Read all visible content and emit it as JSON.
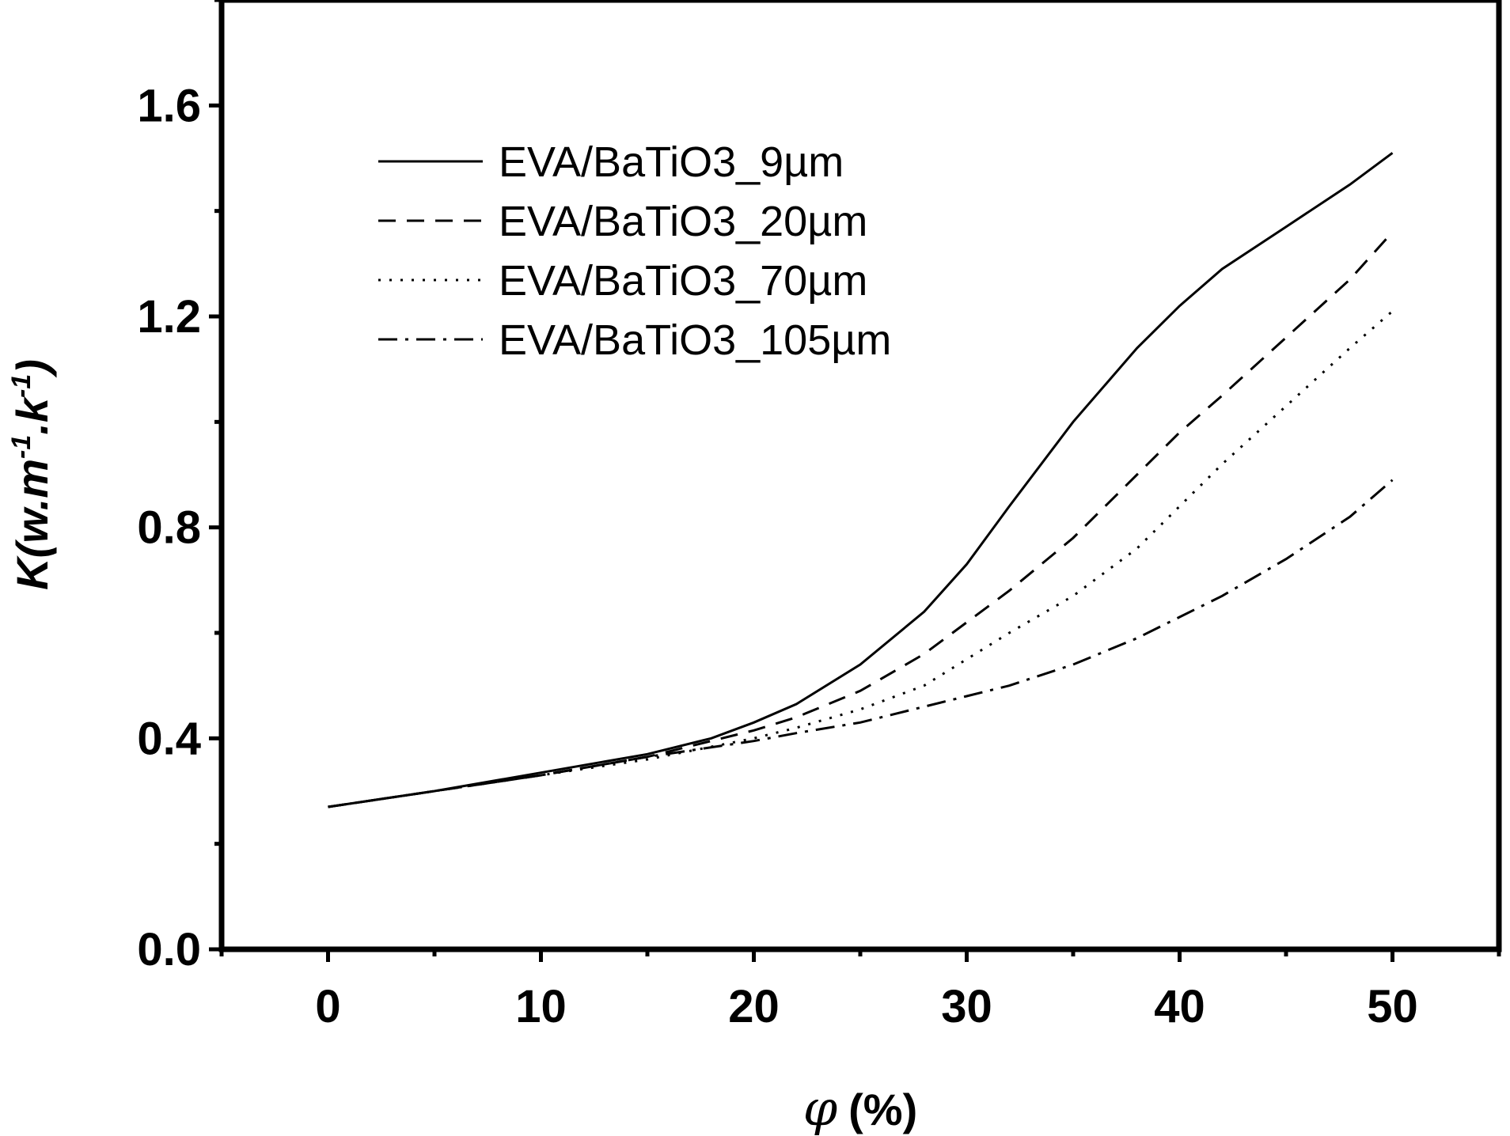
{
  "chart_data": {
    "type": "line",
    "xlabel_symbol": "φ",
    "xlabel_unit": "(%)",
    "ylabel": "K(w.m",
    "ylabel_sup1": "-1",
    "ylabel_mid": ".k",
    "ylabel_sup2": "-1",
    "ylabel_close": ")",
    "xlim": [
      -5,
      55
    ],
    "ylim": [
      0.0,
      1.8
    ],
    "x_ticks": [
      0,
      10,
      20,
      30,
      40,
      50
    ],
    "x_tick_labels": [
      "0",
      "10",
      "20",
      "30",
      "40",
      "50"
    ],
    "y_ticks": [
      0.0,
      0.4,
      0.8,
      1.2,
      1.6
    ],
    "y_tick_labels": [
      "0.0",
      "0.4",
      "0.8",
      "1.2",
      "1.6"
    ],
    "legend_position": "top-left",
    "series": [
      {
        "name": "EVA/BaTiO3_9µm",
        "style": "solid",
        "x": [
          0,
          5,
          10,
          15,
          18,
          20,
          22,
          25,
          28,
          30,
          32,
          35,
          38,
          40,
          42,
          45,
          48,
          50
        ],
        "y": [
          0.27,
          0.3,
          0.335,
          0.37,
          0.4,
          0.43,
          0.465,
          0.54,
          0.64,
          0.73,
          0.84,
          1.0,
          1.14,
          1.22,
          1.29,
          1.37,
          1.45,
          1.51
        ]
      },
      {
        "name": "EVA/BaTiO3_20µm",
        "style": "dashed",
        "x": [
          0,
          5,
          10,
          15,
          20,
          22,
          25,
          28,
          30,
          32,
          35,
          38,
          40,
          42,
          45,
          48,
          50
        ],
        "y": [
          0.27,
          0.3,
          0.33,
          0.365,
          0.415,
          0.44,
          0.49,
          0.56,
          0.62,
          0.68,
          0.78,
          0.9,
          0.98,
          1.05,
          1.16,
          1.27,
          1.36
        ]
      },
      {
        "name": "EVA/BaTiO3_70µm",
        "style": "dotted",
        "x": [
          0,
          5,
          10,
          15,
          20,
          22,
          25,
          28,
          30,
          32,
          35,
          38,
          40,
          42,
          45,
          48,
          50
        ],
        "y": [
          0.27,
          0.3,
          0.33,
          0.36,
          0.4,
          0.42,
          0.455,
          0.5,
          0.55,
          0.6,
          0.67,
          0.76,
          0.84,
          0.92,
          1.03,
          1.14,
          1.21
        ]
      },
      {
        "name": "EVA/BaTiO3_105µm",
        "style": "dash-dot",
        "x": [
          0,
          5,
          10,
          15,
          20,
          22,
          25,
          28,
          30,
          32,
          35,
          38,
          40,
          42,
          45,
          48,
          50
        ],
        "y": [
          0.27,
          0.3,
          0.33,
          0.365,
          0.395,
          0.41,
          0.43,
          0.46,
          0.48,
          0.5,
          0.54,
          0.59,
          0.63,
          0.67,
          0.74,
          0.82,
          0.89
        ]
      }
    ]
  }
}
